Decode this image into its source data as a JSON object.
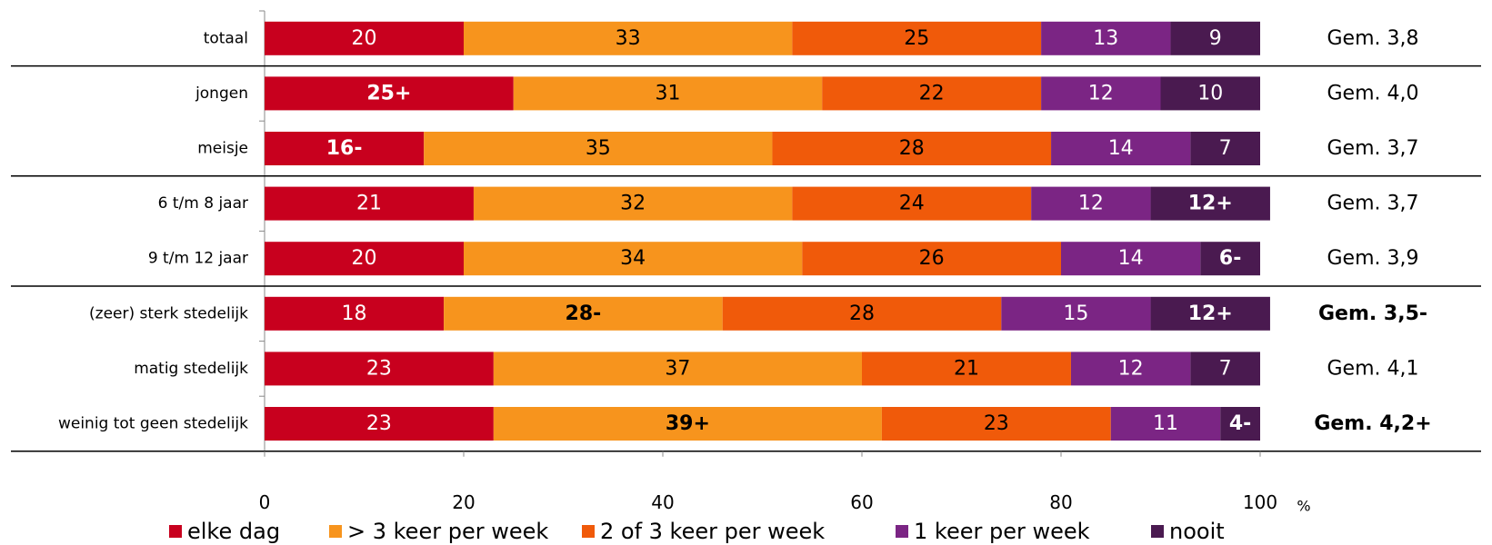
{
  "chart_data": {
    "type": "stacked_bar_horizontal",
    "categories": [
      "totaal",
      "jongen",
      "meisje",
      "6 t/m 8 jaar",
      "9 t/m 12 jaar",
      "(zeer) sterk stedelijk",
      "matig stedelijk",
      "weinig tot geen stedelijk"
    ],
    "series": [
      {
        "name": "elke dag",
        "color": "#c8001e",
        "values": [
          20,
          25,
          16,
          21,
          20,
          18,
          23,
          23
        ],
        "value_labels": [
          "20",
          "25+",
          "16-",
          "21",
          "20",
          "18",
          "23",
          "23"
        ]
      },
      {
        "name": "> 3 keer per week",
        "color": "#f7941d",
        "values": [
          33,
          31,
          35,
          32,
          34,
          28,
          37,
          39
        ],
        "value_labels": [
          "33",
          "31",
          "35",
          "32",
          "34",
          "28-",
          "37",
          "39+"
        ]
      },
      {
        "name": "2 of 3 keer per week",
        "color": "#f05a0a",
        "values": [
          25,
          22,
          28,
          24,
          26,
          28,
          21,
          23
        ],
        "value_labels": [
          "25",
          "22",
          "28",
          "24",
          "26",
          "28",
          "21",
          "23"
        ]
      },
      {
        "name": "1 keer per week",
        "color": "#7b2584",
        "values": [
          13,
          12,
          14,
          12,
          14,
          15,
          12,
          11
        ],
        "value_labels": [
          "13",
          "12",
          "14",
          "12",
          "14",
          "15",
          "12",
          "11"
        ]
      },
      {
        "name": "nooit",
        "color": "#4a1a50",
        "values": [
          9,
          10,
          7,
          12,
          6,
          12,
          7,
          4
        ],
        "value_labels": [
          "9",
          "10",
          "7",
          "12+",
          "6-",
          "12+",
          "7",
          "4-"
        ]
      }
    ],
    "averages": [
      "Gem. 3,8",
      "Gem. 4,0",
      "Gem. 3,7",
      "Gem. 3,7",
      "Gem. 3,9",
      "Gem. 3,5-",
      "Gem. 4,1",
      "Gem. 4,2+"
    ],
    "x_label": "%",
    "xlim": [
      0,
      100
    ],
    "xticks": [
      0,
      20,
      40,
      60,
      80,
      100
    ]
  }
}
